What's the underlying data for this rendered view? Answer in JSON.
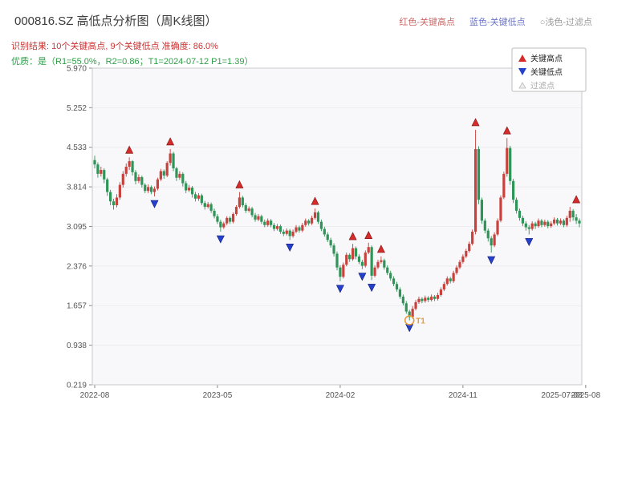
{
  "header": {
    "title": "000816.SZ 高低点分析图（周K线图）",
    "legend_top": [
      {
        "label": "红色-关键高点",
        "color": "#c76a6a"
      },
      {
        "label": "蓝色-关键低点",
        "color": "#6a74c9"
      },
      {
        "label": "○浅色-过滤点",
        "color": "#999999"
      }
    ],
    "result_line": "识别结果: 10个关键高点, 9个关键低点  准确度: 86.0%",
    "quality_line": "优质：是（R1=55.0%，R2=0.86；T1=2024-07-12 P1=1.39）"
  },
  "legend_box": {
    "items": [
      {
        "label": "关键高点",
        "marker": "up",
        "color": "#d62b2b",
        "text_color": "#222222"
      },
      {
        "label": "关键低点",
        "marker": "down",
        "color": "#2541cc",
        "text_color": "#222222"
      },
      {
        "label": "过滤点",
        "marker": "filtered",
        "color": "#bbbbbb",
        "text_color": "#aaaaaa"
      }
    ]
  },
  "chart_data": {
    "type": "candlestick",
    "title": "000816.SZ 高低点分析图（周K线图）",
    "axis": {
      "y_ticks": [
        "5.970",
        "5.252",
        "4.533",
        "3.814",
        "3.095",
        "2.376",
        "1.657",
        "0.938",
        "0.219"
      ],
      "y_max": 5.97,
      "y_min": 0.219,
      "x_ticks": [
        {
          "pos": 0,
          "label": "2022-08"
        },
        {
          "pos": 39,
          "label": "2023-05"
        },
        {
          "pos": 78,
          "label": "2024-02"
        },
        {
          "pos": 117,
          "label": "2024-11"
        },
        {
          "pos": 156,
          "label": "2025-08"
        }
      ],
      "x_extra_label": "2025-07-08"
    },
    "ohlc": [
      [
        4.3,
        4.38,
        4.15,
        4.22
      ],
      [
        4.22,
        4.26,
        3.98,
        4.05
      ],
      [
        4.05,
        4.18,
        4.0,
        4.12
      ],
      [
        4.12,
        4.15,
        3.88,
        3.95
      ],
      [
        3.95,
        3.98,
        3.65,
        3.72
      ],
      [
        3.72,
        3.76,
        3.48,
        3.55
      ],
      [
        3.55,
        3.6,
        3.4,
        3.48
      ],
      [
        3.48,
        3.68,
        3.44,
        3.62
      ],
      [
        3.62,
        3.9,
        3.58,
        3.85
      ],
      [
        3.85,
        4.1,
        3.8,
        4.05
      ],
      [
        4.05,
        4.24,
        4.0,
        4.18
      ],
      [
        4.18,
        4.35,
        4.12,
        4.28
      ],
      [
        4.28,
        4.3,
        4.02,
        4.08
      ],
      [
        4.08,
        4.12,
        3.86,
        3.92
      ],
      [
        3.92,
        4.04,
        3.88,
        3.99
      ],
      [
        3.99,
        4.02,
        3.8,
        3.85
      ],
      [
        3.85,
        3.88,
        3.7,
        3.74
      ],
      [
        3.74,
        3.86,
        3.7,
        3.81
      ],
      [
        3.81,
        3.84,
        3.68,
        3.72
      ],
      [
        3.72,
        3.82,
        3.64,
        3.78
      ],
      [
        3.78,
        3.98,
        3.75,
        3.95
      ],
      [
        3.95,
        4.14,
        3.92,
        4.1
      ],
      [
        4.1,
        4.13,
        3.96,
        4.02
      ],
      [
        4.02,
        4.28,
        3.99,
        4.25
      ],
      [
        4.25,
        4.5,
        4.2,
        4.42
      ],
      [
        4.42,
        4.45,
        4.1,
        4.15
      ],
      [
        4.15,
        4.18,
        3.92,
        3.98
      ],
      [
        3.98,
        4.1,
        3.94,
        4.05
      ],
      [
        4.05,
        4.08,
        3.82,
        3.88
      ],
      [
        3.88,
        3.92,
        3.7,
        3.75
      ],
      [
        3.75,
        3.85,
        3.72,
        3.8
      ],
      [
        3.8,
        3.83,
        3.62,
        3.68
      ],
      [
        3.68,
        3.72,
        3.55,
        3.6
      ],
      [
        3.6,
        3.7,
        3.56,
        3.66
      ],
      [
        3.66,
        3.69,
        3.48,
        3.52
      ],
      [
        3.52,
        3.56,
        3.4,
        3.45
      ],
      [
        3.45,
        3.54,
        3.42,
        3.5
      ],
      [
        3.5,
        3.53,
        3.34,
        3.38
      ],
      [
        3.38,
        3.42,
        3.24,
        3.28
      ],
      [
        3.28,
        3.32,
        3.14,
        3.18
      ],
      [
        3.18,
        3.22,
        3.0,
        3.08
      ],
      [
        3.08,
        3.18,
        3.05,
        3.15
      ],
      [
        3.15,
        3.28,
        3.12,
        3.25
      ],
      [
        3.25,
        3.28,
        3.14,
        3.18
      ],
      [
        3.18,
        3.35,
        3.15,
        3.32
      ],
      [
        3.32,
        3.48,
        3.29,
        3.45
      ],
      [
        3.45,
        3.72,
        3.42,
        3.62
      ],
      [
        3.62,
        3.65,
        3.44,
        3.48
      ],
      [
        3.48,
        3.52,
        3.34,
        3.38
      ],
      [
        3.38,
        3.46,
        3.35,
        3.42
      ],
      [
        3.42,
        3.45,
        3.26,
        3.3
      ],
      [
        3.3,
        3.34,
        3.18,
        3.22
      ],
      [
        3.22,
        3.32,
        3.19,
        3.28
      ],
      [
        3.28,
        3.31,
        3.14,
        3.18
      ],
      [
        3.18,
        3.22,
        3.08,
        3.12
      ],
      [
        3.12,
        3.24,
        3.09,
        3.2
      ],
      [
        3.2,
        3.23,
        3.08,
        3.12
      ],
      [
        3.12,
        3.16,
        3.01,
        3.05
      ],
      [
        3.05,
        3.14,
        3.02,
        3.1
      ],
      [
        3.1,
        3.13,
        2.96,
        3.0
      ],
      [
        3.0,
        3.04,
        2.92,
        2.96
      ],
      [
        2.96,
        3.06,
        2.93,
        3.02
      ],
      [
        3.02,
        3.05,
        2.85,
        2.92
      ],
      [
        2.92,
        3.04,
        2.89,
        3.0
      ],
      [
        3.0,
        3.12,
        2.97,
        3.08
      ],
      [
        3.08,
        3.11,
        2.98,
        3.02
      ],
      [
        3.02,
        3.16,
        2.99,
        3.12
      ],
      [
        3.12,
        3.24,
        3.09,
        3.2
      ],
      [
        3.2,
        3.23,
        3.11,
        3.15
      ],
      [
        3.15,
        3.29,
        3.12,
        3.25
      ],
      [
        3.25,
        3.42,
        3.22,
        3.35
      ],
      [
        3.35,
        3.38,
        3.14,
        3.18
      ],
      [
        3.18,
        3.22,
        3.01,
        3.05
      ],
      [
        3.05,
        3.09,
        2.91,
        2.95
      ],
      [
        2.95,
        2.99,
        2.81,
        2.85
      ],
      [
        2.85,
        2.89,
        2.71,
        2.75
      ],
      [
        2.75,
        2.79,
        2.55,
        2.6
      ],
      [
        2.6,
        2.64,
        2.3,
        2.35
      ],
      [
        2.35,
        2.39,
        2.1,
        2.18
      ],
      [
        2.18,
        2.44,
        2.15,
        2.4
      ],
      [
        2.4,
        2.62,
        2.37,
        2.58
      ],
      [
        2.58,
        2.61,
        2.45,
        2.5
      ],
      [
        2.5,
        2.78,
        2.47,
        2.7
      ],
      [
        2.7,
        2.73,
        2.5,
        2.55
      ],
      [
        2.55,
        2.59,
        2.41,
        2.45
      ],
      [
        2.45,
        2.49,
        2.32,
        2.38
      ],
      [
        2.38,
        2.66,
        2.35,
        2.62
      ],
      [
        2.62,
        2.8,
        2.59,
        2.72
      ],
      [
        2.72,
        2.75,
        2.12,
        2.2
      ],
      [
        2.2,
        2.39,
        2.17,
        2.35
      ],
      [
        2.35,
        2.49,
        2.32,
        2.45
      ],
      [
        2.45,
        2.55,
        2.42,
        2.48
      ],
      [
        2.48,
        2.51,
        2.31,
        2.35
      ],
      [
        2.35,
        2.39,
        2.21,
        2.25
      ],
      [
        2.25,
        2.29,
        2.11,
        2.15
      ],
      [
        2.15,
        2.19,
        2.01,
        2.05
      ],
      [
        2.05,
        2.09,
        1.91,
        1.95
      ],
      [
        1.95,
        1.99,
        1.78,
        1.82
      ],
      [
        1.82,
        1.86,
        1.66,
        1.7
      ],
      [
        1.7,
        1.74,
        1.51,
        1.55
      ],
      [
        1.55,
        1.58,
        1.39,
        1.45
      ],
      [
        1.45,
        1.65,
        1.42,
        1.6
      ],
      [
        1.6,
        1.76,
        1.57,
        1.72
      ],
      [
        1.72,
        1.82,
        1.69,
        1.78
      ],
      [
        1.78,
        1.81,
        1.7,
        1.74
      ],
      [
        1.74,
        1.84,
        1.71,
        1.8
      ],
      [
        1.8,
        1.83,
        1.72,
        1.76
      ],
      [
        1.76,
        1.86,
        1.73,
        1.82
      ],
      [
        1.82,
        1.85,
        1.74,
        1.78
      ],
      [
        1.78,
        1.89,
        1.75,
        1.85
      ],
      [
        1.85,
        1.99,
        1.82,
        1.95
      ],
      [
        1.95,
        2.09,
        1.92,
        2.05
      ],
      [
        2.05,
        2.19,
        2.02,
        2.15
      ],
      [
        2.15,
        2.18,
        2.06,
        2.1
      ],
      [
        2.1,
        2.29,
        2.07,
        2.25
      ],
      [
        2.25,
        2.39,
        2.22,
        2.35
      ],
      [
        2.35,
        2.49,
        2.32,
        2.45
      ],
      [
        2.45,
        2.59,
        2.42,
        2.55
      ],
      [
        2.55,
        2.69,
        2.52,
        2.65
      ],
      [
        2.65,
        2.82,
        2.62,
        2.78
      ],
      [
        2.78,
        3.04,
        2.75,
        3.0
      ],
      [
        3.0,
        4.85,
        2.95,
        4.5
      ],
      [
        4.5,
        4.55,
        3.5,
        3.58
      ],
      [
        3.58,
        3.62,
        3.14,
        3.2
      ],
      [
        3.2,
        3.24,
        2.97,
        3.02
      ],
      [
        3.02,
        3.06,
        2.82,
        2.88
      ],
      [
        2.88,
        2.92,
        2.62,
        2.75
      ],
      [
        2.75,
        2.99,
        2.72,
        2.95
      ],
      [
        2.95,
        3.24,
        2.92,
        3.2
      ],
      [
        3.2,
        3.66,
        3.17,
        3.62
      ],
      [
        3.62,
        4.09,
        3.59,
        4.05
      ],
      [
        4.05,
        4.7,
        4.0,
        4.52
      ],
      [
        4.52,
        4.56,
        3.85,
        3.92
      ],
      [
        3.92,
        3.96,
        3.52,
        3.58
      ],
      [
        3.58,
        3.62,
        3.33,
        3.38
      ],
      [
        3.38,
        3.42,
        3.2,
        3.25
      ],
      [
        3.25,
        3.29,
        3.1,
        3.15
      ],
      [
        3.15,
        3.19,
        3.02,
        3.08
      ],
      [
        3.08,
        3.12,
        2.95,
        3.05
      ],
      [
        3.05,
        3.19,
        3.02,
        3.15
      ],
      [
        3.15,
        3.18,
        3.05,
        3.1
      ],
      [
        3.1,
        3.24,
        3.07,
        3.2
      ],
      [
        3.2,
        3.23,
        3.08,
        3.12
      ],
      [
        3.12,
        3.22,
        3.09,
        3.18
      ],
      [
        3.18,
        3.21,
        3.06,
        3.1
      ],
      [
        3.1,
        3.19,
        3.07,
        3.15
      ],
      [
        3.15,
        3.26,
        3.12,
        3.22
      ],
      [
        3.22,
        3.25,
        3.11,
        3.15
      ],
      [
        3.15,
        3.24,
        3.12,
        3.2
      ],
      [
        3.2,
        3.23,
        3.08,
        3.12
      ],
      [
        3.12,
        3.29,
        3.09,
        3.25
      ],
      [
        3.25,
        3.45,
        3.18,
        3.38
      ],
      [
        3.38,
        3.41,
        3.2,
        3.26
      ],
      [
        3.26,
        3.32,
        3.14,
        3.2
      ],
      [
        3.2,
        3.24,
        3.08,
        3.15
      ]
    ],
    "key_highs": [
      [
        11,
        4.35
      ],
      [
        24,
        4.5
      ],
      [
        46,
        3.72
      ],
      [
        70,
        3.42
      ],
      [
        82,
        2.78
      ],
      [
        87,
        2.8
      ],
      [
        91,
        2.55
      ],
      [
        121,
        4.85
      ],
      [
        131,
        4.7
      ],
      [
        153,
        3.45
      ]
    ],
    "key_lows": [
      [
        19,
        3.64
      ],
      [
        40,
        3.0
      ],
      [
        62,
        2.85
      ],
      [
        78,
        2.1
      ],
      [
        85,
        2.32
      ],
      [
        88,
        2.12
      ],
      [
        100,
        1.39
      ],
      [
        126,
        2.62
      ],
      [
        138,
        2.95
      ]
    ],
    "t1": {
      "index": 100,
      "price": 1.39,
      "label": "T1"
    },
    "colors": {
      "up": "#c9413c",
      "down": "#2e9457",
      "key_high": "#d62b2b",
      "key_low": "#2541cc",
      "filtered": "#bbbbbb",
      "t1": "#e79b3c"
    }
  }
}
